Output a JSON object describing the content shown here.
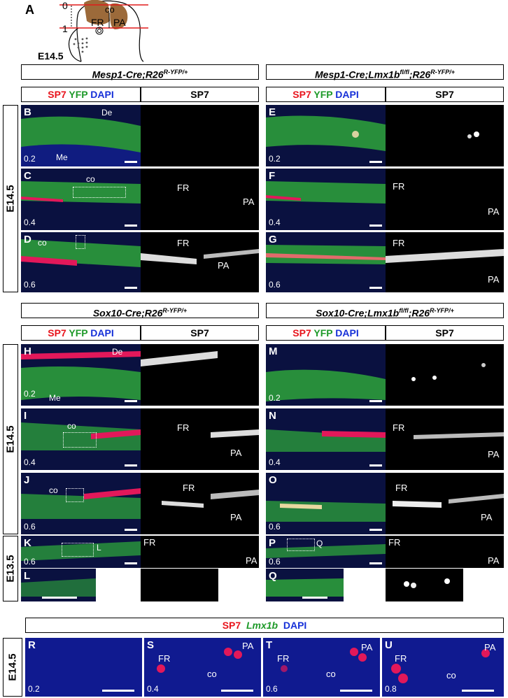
{
  "schematic": {
    "letter": "A",
    "stage": "E14.5",
    "scale_top": "0",
    "scale_bottom": "1",
    "labels": [
      "co",
      "FR",
      "PA"
    ]
  },
  "headers": {
    "mesp_ctrl": "Mesp1-Cre;R26R-YFP/+",
    "mesp_mut": "Mesp1-Cre;Lmx1bfl/fl;R26R-YFP/+",
    "sox_ctrl": "Sox10-Cre;R26R-YFP/+",
    "sox_mut": "Sox10-Cre;Lmx1bfl/fl;R26R-YFP/+",
    "bottom": [
      "SP7",
      "Lmx1b",
      "DAPI"
    ]
  },
  "channels": {
    "sp7": "SP7",
    "yfp": "YFP",
    "dapi": "DAPI",
    "single": "SP7"
  },
  "stages": {
    "top": "E14.5",
    "mid": "E14.5",
    "e13": "E13.5",
    "bottom": "E14.5"
  },
  "panels": {
    "B": {
      "letter": "B",
      "depth": "0.2",
      "labels": [
        "De",
        "Me"
      ]
    },
    "C": {
      "letter": "C",
      "depth": "0.4",
      "labels": [
        "co",
        "FR",
        "PA"
      ]
    },
    "D": {
      "letter": "D",
      "depth": "0.6",
      "labels": [
        "co",
        "FR",
        "PA"
      ]
    },
    "E": {
      "letter": "E",
      "depth": "0.2"
    },
    "F": {
      "letter": "F",
      "depth": "0.4",
      "labels": [
        "FR",
        "PA"
      ]
    },
    "G": {
      "letter": "G",
      "depth": "0.6",
      "labels": [
        "FR",
        "PA"
      ]
    },
    "H": {
      "letter": "H",
      "depth": "0.2",
      "labels": [
        "De",
        "Me"
      ]
    },
    "I": {
      "letter": "I",
      "depth": "0.4",
      "labels": [
        "co",
        "FR",
        "PA"
      ]
    },
    "J": {
      "letter": "J",
      "depth": "0.6",
      "labels": [
        "co",
        "FR",
        "PA"
      ]
    },
    "K": {
      "letter": "K",
      "depth": "0.6",
      "labels": [
        "L",
        "FR",
        "PA"
      ]
    },
    "L": {
      "letter": "L"
    },
    "M": {
      "letter": "M",
      "depth": "0.2"
    },
    "N": {
      "letter": "N",
      "depth": "0.4",
      "labels": [
        "FR",
        "PA"
      ]
    },
    "O": {
      "letter": "O",
      "depth": "0.6",
      "labels": [
        "FR",
        "PA"
      ]
    },
    "P": {
      "letter": "P",
      "depth": "0.6",
      "labels": [
        "Q",
        "FR",
        "PA"
      ]
    },
    "Q": {
      "letter": "Q"
    },
    "R": {
      "letter": "R",
      "depth": "0.2"
    },
    "S": {
      "letter": "S",
      "depth": "0.4",
      "labels": [
        "FR",
        "PA",
        "co"
      ]
    },
    "T": {
      "letter": "T",
      "depth": "0.6",
      "labels": [
        "FR",
        "PA",
        "co"
      ]
    },
    "U": {
      "letter": "U",
      "depth": "0.8",
      "labels": [
        "FR",
        "PA",
        "co"
      ]
    }
  },
  "colors": {
    "red": "#e8141c",
    "green": "#1f9a2a",
    "blue": "#1630d8",
    "tissue_bg": "#0a1140"
  }
}
